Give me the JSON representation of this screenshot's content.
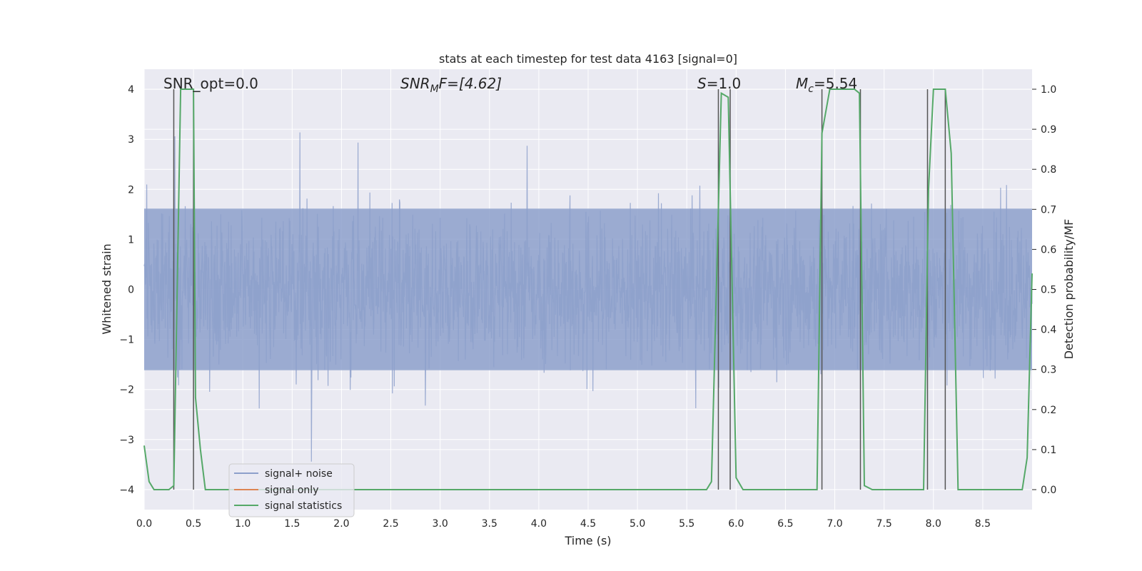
{
  "chart_data": {
    "type": "line",
    "title": "stats at each timestep for test data 4163 [signal=0]",
    "xlabel": "Time (s)",
    "ylabel_left": "Whitened strain",
    "ylabel_right": "Detection probability/MF",
    "xlim": [
      0.0,
      9.0
    ],
    "ylim_left": [
      -4.4,
      4.4
    ],
    "ylim_right": [
      -0.05,
      1.05
    ],
    "x_ticks": [
      "0.0",
      "0.5",
      "1.0",
      "1.5",
      "2.0",
      "2.5",
      "3.0",
      "3.5",
      "4.0",
      "4.5",
      "5.0",
      "5.5",
      "6.0",
      "6.5",
      "7.0",
      "7.5",
      "8.0",
      "8.5"
    ],
    "y_ticks_left": [
      "4",
      "3",
      "2",
      "1",
      "0",
      "−1",
      "−2",
      "−3",
      "−4"
    ],
    "y_ticks_right": [
      "1.0",
      "0.9",
      "0.8",
      "0.7",
      "0.6",
      "0.5",
      "0.4",
      "0.3",
      "0.2",
      "0.1",
      "0.0"
    ],
    "grid": true,
    "legend_position": "lower-left",
    "annotations": {
      "snr_opt": "SNR_opt=0.0",
      "snr_mf_base": "SNR",
      "snr_mf_sub": "M",
      "snr_mf_rest": "F=[4.62]",
      "s_italic": "S",
      "s_rest": "=1.0",
      "mc_italic": "M",
      "mc_sub": "c",
      "mc_rest": "=5.54"
    },
    "series": [
      {
        "name": "signal+ noise",
        "color": "#8da0cb",
        "description_envelope": {
          "typical_amplitude": 1.7,
          "peak_amplitude": 3.9
        }
      },
      {
        "name": "signal only",
        "color": "#dd8452",
        "values": []
      },
      {
        "name": "signal statistics",
        "color": "#55a868",
        "x": [
          0.0,
          0.05,
          0.1,
          0.25,
          0.3,
          0.37,
          0.5,
          0.52,
          0.57,
          0.62,
          5.7,
          5.75,
          5.85,
          5.92,
          6.0,
          6.07,
          6.82,
          6.87,
          6.95,
          7.2,
          7.25,
          7.3,
          7.38,
          7.9,
          7.95,
          8.0,
          8.12,
          8.18,
          8.25,
          8.9,
          8.95,
          9.0
        ],
        "values": [
          0.11,
          0.02,
          0.0,
          0.0,
          0.01,
          1.0,
          1.0,
          0.23,
          0.1,
          0.0,
          0.0,
          0.02,
          0.99,
          0.98,
          0.03,
          0.0,
          0.0,
          0.89,
          1.0,
          1.0,
          0.99,
          0.01,
          0.0,
          0.0,
          0.75,
          1.0,
          1.0,
          0.84,
          0.0,
          0.0,
          0.08,
          0.54
        ]
      }
    ],
    "vertical_lines_x": [
      0.3,
      0.5,
      5.82,
      5.94,
      6.87,
      7.26,
      7.94,
      8.12
    ]
  }
}
